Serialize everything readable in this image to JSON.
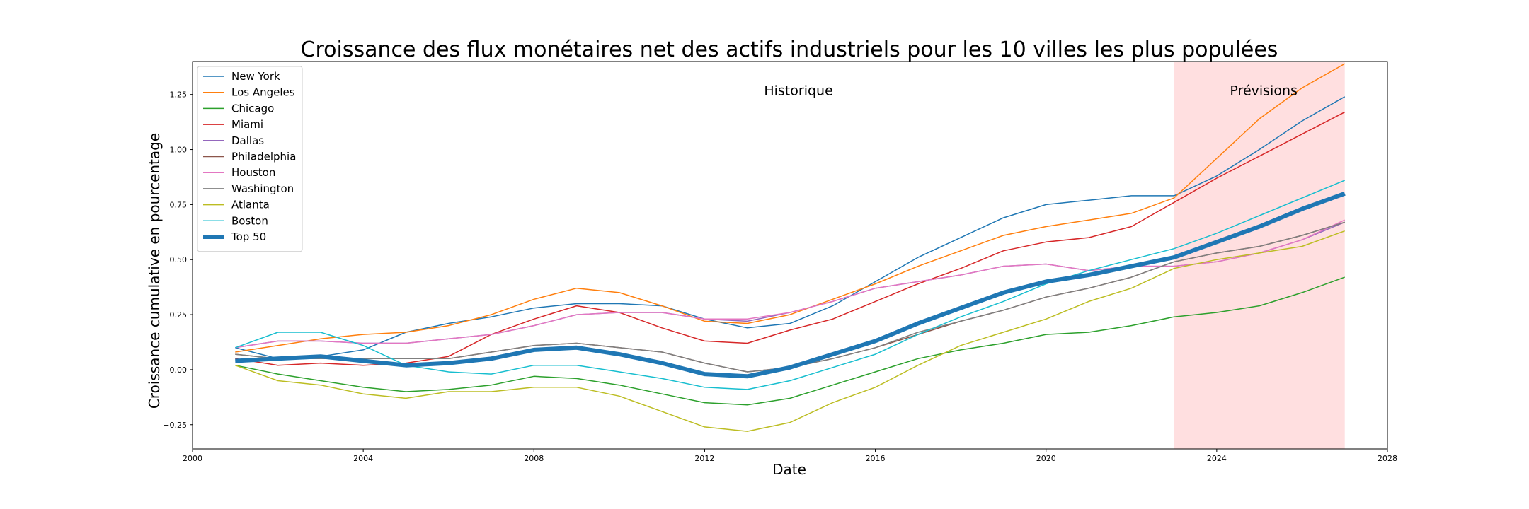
{
  "chart_data": {
    "type": "line",
    "title": "Croissance des flux monétaires net des actifs industriels pour les 10 villes les plus populées",
    "xlabel": "Date",
    "ylabel": "Croissance cumulative en pourcentage",
    "xlim": [
      2000,
      2028
    ],
    "ylim": [
      -0.36,
      1.4
    ],
    "x_ticks": [
      2000,
      2004,
      2008,
      2012,
      2016,
      2020,
      2024,
      2028
    ],
    "y_ticks": [
      -0.25,
      0.0,
      0.25,
      0.5,
      0.75,
      1.0,
      1.25
    ],
    "y_tick_labels": [
      "−0.25",
      "0.00",
      "0.25",
      "0.50",
      "0.75",
      "1.00",
      "1.25"
    ],
    "x": [
      2001,
      2002,
      2003,
      2004,
      2005,
      2006,
      2007,
      2008,
      2009,
      2010,
      2011,
      2012,
      2013,
      2014,
      2015,
      2016,
      2017,
      2018,
      2019,
      2020,
      2021,
      2022,
      2023,
      2024,
      2025,
      2026,
      2027
    ],
    "grid": false,
    "legend_position": "upper-left",
    "forecast_region": {
      "start": 2023,
      "end": 2027,
      "color": "#ffdfe0"
    },
    "annotations": [
      {
        "text": "Historique",
        "x": 2014.2,
        "y": 1.27
      },
      {
        "text": "Prévisions",
        "x": 2025.1,
        "y": 1.27
      }
    ],
    "series": [
      {
        "name": "New York",
        "color": "#1f77b4",
        "width": 1.5,
        "values": [
          0.1,
          0.05,
          0.06,
          0.09,
          0.17,
          0.21,
          0.24,
          0.28,
          0.3,
          0.3,
          0.29,
          0.23,
          0.19,
          0.21,
          0.29,
          0.4,
          0.51,
          0.6,
          0.69,
          0.75,
          0.77,
          0.79,
          0.79,
          0.88,
          1.0,
          1.13,
          1.24
        ]
      },
      {
        "name": "Los Angeles",
        "color": "#ff7f0e",
        "width": 1.5,
        "values": [
          0.08,
          0.11,
          0.14,
          0.16,
          0.17,
          0.2,
          0.25,
          0.32,
          0.37,
          0.35,
          0.29,
          0.22,
          0.21,
          0.25,
          0.32,
          0.39,
          0.47,
          0.54,
          0.61,
          0.65,
          0.68,
          0.71,
          0.78,
          0.96,
          1.14,
          1.28,
          1.39
        ]
      },
      {
        "name": "Chicago",
        "color": "#2ca02c",
        "width": 1.5,
        "values": [
          0.02,
          -0.02,
          -0.05,
          -0.08,
          -0.1,
          -0.09,
          -0.07,
          -0.03,
          -0.04,
          -0.07,
          -0.11,
          -0.15,
          -0.16,
          -0.13,
          -0.07,
          -0.01,
          0.05,
          0.09,
          0.12,
          0.16,
          0.17,
          0.2,
          0.24,
          0.26,
          0.29,
          0.35,
          0.42
        ]
      },
      {
        "name": "Miami",
        "color": "#d62728",
        "width": 1.5,
        "values": [
          0.05,
          0.02,
          0.03,
          0.02,
          0.03,
          0.06,
          0.16,
          0.23,
          0.29,
          0.26,
          0.19,
          0.13,
          0.12,
          0.18,
          0.23,
          0.31,
          0.39,
          0.46,
          0.54,
          0.58,
          0.6,
          0.65,
          0.76,
          0.87,
          0.97,
          1.07,
          1.17
        ]
      },
      {
        "name": "Dallas",
        "color": "#9467bd",
        "width": 1.5,
        "values": [
          0.1,
          0.13,
          0.13,
          0.12,
          0.12,
          0.14,
          0.16,
          0.2,
          0.25,
          0.26,
          0.26,
          0.23,
          0.22,
          0.26,
          0.31,
          0.37,
          0.4,
          0.43,
          0.47,
          0.48,
          0.45,
          0.47,
          0.47,
          0.49,
          0.53,
          0.59,
          0.67
        ]
      },
      {
        "name": "Philadelphia",
        "color": "#8c564b",
        "width": 1.5,
        "values": [
          0.07,
          0.05,
          0.05,
          0.05,
          0.05,
          0.05,
          0.08,
          0.11,
          0.12,
          0.1,
          0.08,
          0.03,
          -0.01,
          0.01,
          0.05,
          0.1,
          0.16,
          0.22,
          0.27,
          0.33,
          0.37,
          0.42,
          0.49,
          0.53,
          0.56,
          0.61,
          0.67
        ]
      },
      {
        "name": "Houston",
        "color": "#e377c2",
        "width": 1.5,
        "values": [
          0.1,
          0.13,
          0.13,
          0.12,
          0.12,
          0.14,
          0.16,
          0.2,
          0.25,
          0.26,
          0.26,
          0.23,
          0.23,
          0.26,
          0.31,
          0.37,
          0.4,
          0.43,
          0.47,
          0.48,
          0.45,
          0.47,
          0.47,
          0.49,
          0.53,
          0.59,
          0.68
        ]
      },
      {
        "name": "Washington",
        "color": "#7f7f7f",
        "width": 1.5,
        "values": [
          0.07,
          0.05,
          0.05,
          0.05,
          0.05,
          0.05,
          0.08,
          0.11,
          0.12,
          0.1,
          0.08,
          0.03,
          -0.01,
          0.01,
          0.05,
          0.1,
          0.17,
          0.22,
          0.27,
          0.33,
          0.37,
          0.42,
          0.49,
          0.53,
          0.56,
          0.61,
          0.67
        ]
      },
      {
        "name": "Atlanta",
        "color": "#bcbd22",
        "width": 1.5,
        "values": [
          0.02,
          -0.05,
          -0.07,
          -0.11,
          -0.13,
          -0.1,
          -0.1,
          -0.08,
          -0.08,
          -0.12,
          -0.19,
          -0.26,
          -0.28,
          -0.24,
          -0.15,
          -0.08,
          0.02,
          0.11,
          0.17,
          0.23,
          0.31,
          0.37,
          0.46,
          0.5,
          0.53,
          0.56,
          0.63
        ]
      },
      {
        "name": "Boston",
        "color": "#17becf",
        "width": 1.5,
        "values": [
          0.1,
          0.17,
          0.17,
          0.11,
          0.02,
          -0.01,
          -0.02,
          0.02,
          0.02,
          -0.01,
          -0.04,
          -0.08,
          -0.09,
          -0.05,
          0.01,
          0.07,
          0.16,
          0.24,
          0.31,
          0.39,
          0.45,
          0.5,
          0.55,
          0.62,
          0.7,
          0.78,
          0.86
        ]
      },
      {
        "name": "Top 50",
        "color": "#1f77b4",
        "width": 6,
        "values": [
          0.04,
          0.05,
          0.06,
          0.04,
          0.02,
          0.03,
          0.05,
          0.09,
          0.1,
          0.07,
          0.03,
          -0.02,
          -0.03,
          0.01,
          0.07,
          0.13,
          0.21,
          0.28,
          0.35,
          0.4,
          0.43,
          0.47,
          0.51,
          0.58,
          0.65,
          0.73,
          0.8
        ]
      }
    ]
  }
}
